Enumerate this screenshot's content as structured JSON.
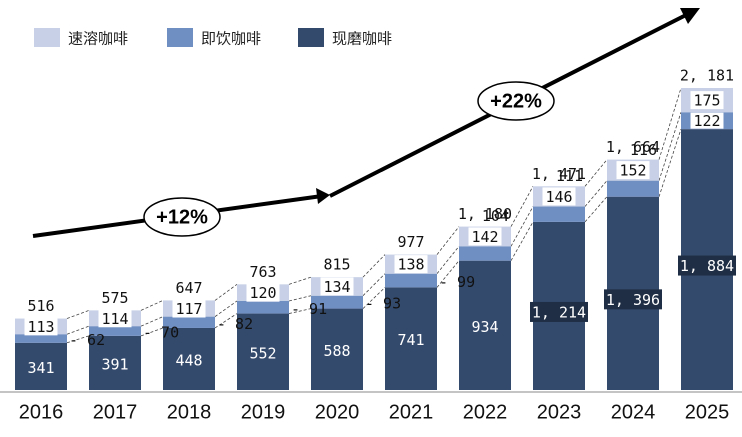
{
  "chart_data": {
    "type": "bar",
    "stacked": true,
    "categories": [
      "2016",
      "2017",
      "2018",
      "2019",
      "2020",
      "2021",
      "2022",
      "2023",
      "2024",
      "2025"
    ],
    "series": [
      {
        "name": "现磨咖啡",
        "color": "#344a6c",
        "values": [
          341,
          391,
          448,
          552,
          588,
          741,
          934,
          1214,
          1396,
          1884
        ]
      },
      {
        "name": "即饮咖啡",
        "color": "#6f8ec2",
        "values": [
          62,
          70,
          82,
          91,
          93,
          99,
          104,
          111,
          116,
          122
        ]
      },
      {
        "name": "速溶咖啡",
        "color": "#c7d0e6",
        "values": [
          113,
          114,
          117,
          120,
          134,
          138,
          142,
          146,
          152,
          175
        ]
      }
    ],
    "totals": [
      516,
      575,
      647,
      763,
      815,
      977,
      1180,
      1471,
      1664,
      2181
    ],
    "display": {
      "totals": [
        "516",
        "575",
        "647",
        "763",
        "815",
        "977",
        "1, 180",
        "1, 471",
        "1, 664",
        "2, 181"
      ],
      "fresh": [
        "341",
        "391",
        "448",
        "552",
        "588",
        "741",
        "934",
        "1, 214",
        "1, 396",
        "1, 884"
      ],
      "rtd": [
        "62",
        "70",
        "82",
        "91",
        "93",
        "99",
        "104",
        "111",
        "116",
        "122"
      ],
      "instant": [
        "113",
        "114",
        "117",
        "120",
        "134",
        "138",
        "142",
        "146",
        "152",
        "175"
      ]
    },
    "ylim": [
      0,
      2181
    ],
    "title": "",
    "xlabel": "",
    "ylabel": "",
    "legend": [
      "速溶咖啡",
      "即饮咖啡",
      "现磨咖啡"
    ],
    "legend_position": "top-left",
    "annotations": [
      {
        "text": "+12%",
        "period": "2016-2020"
      },
      {
        "text": "+22%",
        "period": "2020-2025"
      }
    ]
  }
}
